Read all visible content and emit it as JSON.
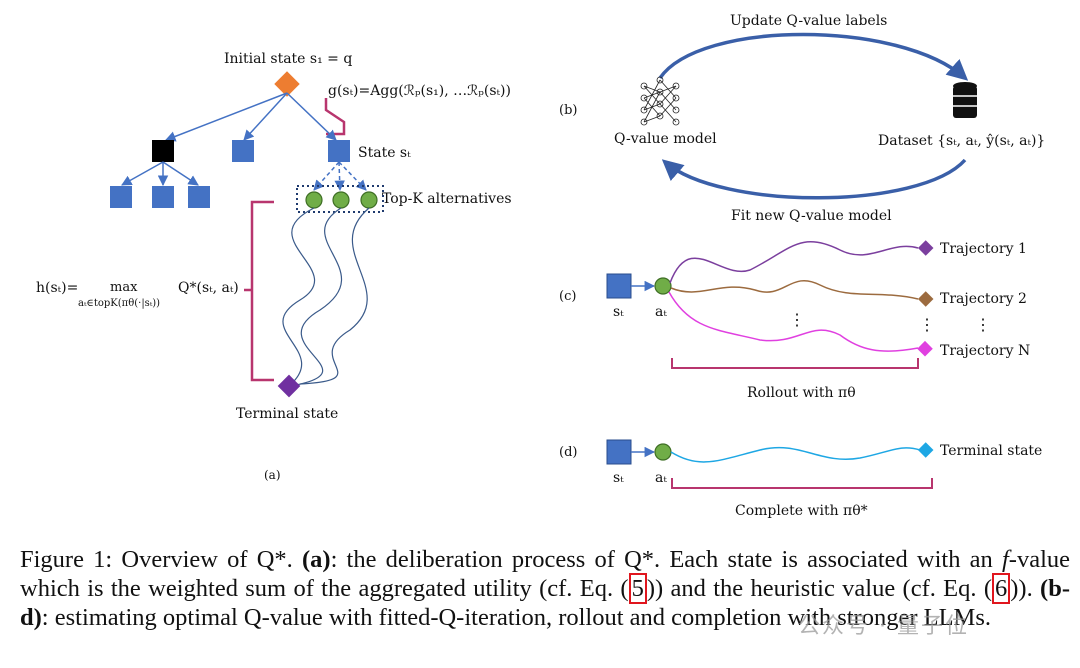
{
  "panel_a": {
    "initial_state": "Initial state s₁ = q",
    "g_formula": "g(sₜ)=Agg(ℛₚ(s₁), …ℛₚ(sₜ))",
    "state_label": "State sₜ",
    "topk_label": "Top-K alternatives",
    "h_formula_left": "h(sₜ)=",
    "h_formula_max": "max",
    "h_formula_sub": "aₜ∈topK(πθ(·|sₜ))",
    "h_formula_right": "Q*(sₜ, aₜ)",
    "terminal_label": "Terminal state",
    "tag": "(a)"
  },
  "panel_b": {
    "tag": "(b)",
    "top_arrow_label": "Update Q-value labels",
    "bottom_arrow_label": "Fit new Q-value model",
    "model_label": "Q-value model",
    "dataset_label": "Dataset {sₜ, aₜ, ŷ(sₜ, aₜ)}"
  },
  "panel_c": {
    "tag": "(c)",
    "state_label": "sₜ",
    "action_label": "aₜ",
    "trajectories": [
      "Trajectory 1",
      "Trajectory 2",
      "Trajectory N"
    ],
    "dots": "⋮",
    "rollout_label": "Rollout with πθ"
  },
  "panel_d": {
    "tag": "(d)",
    "state_label": "sₜ",
    "action_label": "aₜ",
    "terminal_label": "Terminal state",
    "complete_label": "Complete with πθ*"
  },
  "caption": {
    "t1": "Figure 1: Overview of Q*. ",
    "b1": "(a)",
    "t2": ": the deliberation process of Q*. Each state is associated with an ",
    "f": "f",
    "t3": "-value which is the weighted sum of the aggregated utility (cf. Eq. (",
    "ref1": "5",
    "t4": ")) and the heuristic value (cf. Eq. (",
    "ref2": "6",
    "t5": ")). ",
    "b2": "(b-d)",
    "t6": ": estimating optimal Q-value with fitted-Q-iteration, rollout and completion with stronger LLMs."
  },
  "watermark": "公众号 · 量子位",
  "colors": {
    "node_blue": "#4472c4",
    "node_orange": "#ed7d31",
    "node_green": "#70ad47",
    "terminal_purple": "#7030a0",
    "bracket": "#b8356e",
    "traj1": "#7b3f9e",
    "traj2": "#9c6b3f",
    "trajN": "#e040e0",
    "terminal_cyan": "#1ea7e4",
    "ref_box": "#e0161e"
  }
}
